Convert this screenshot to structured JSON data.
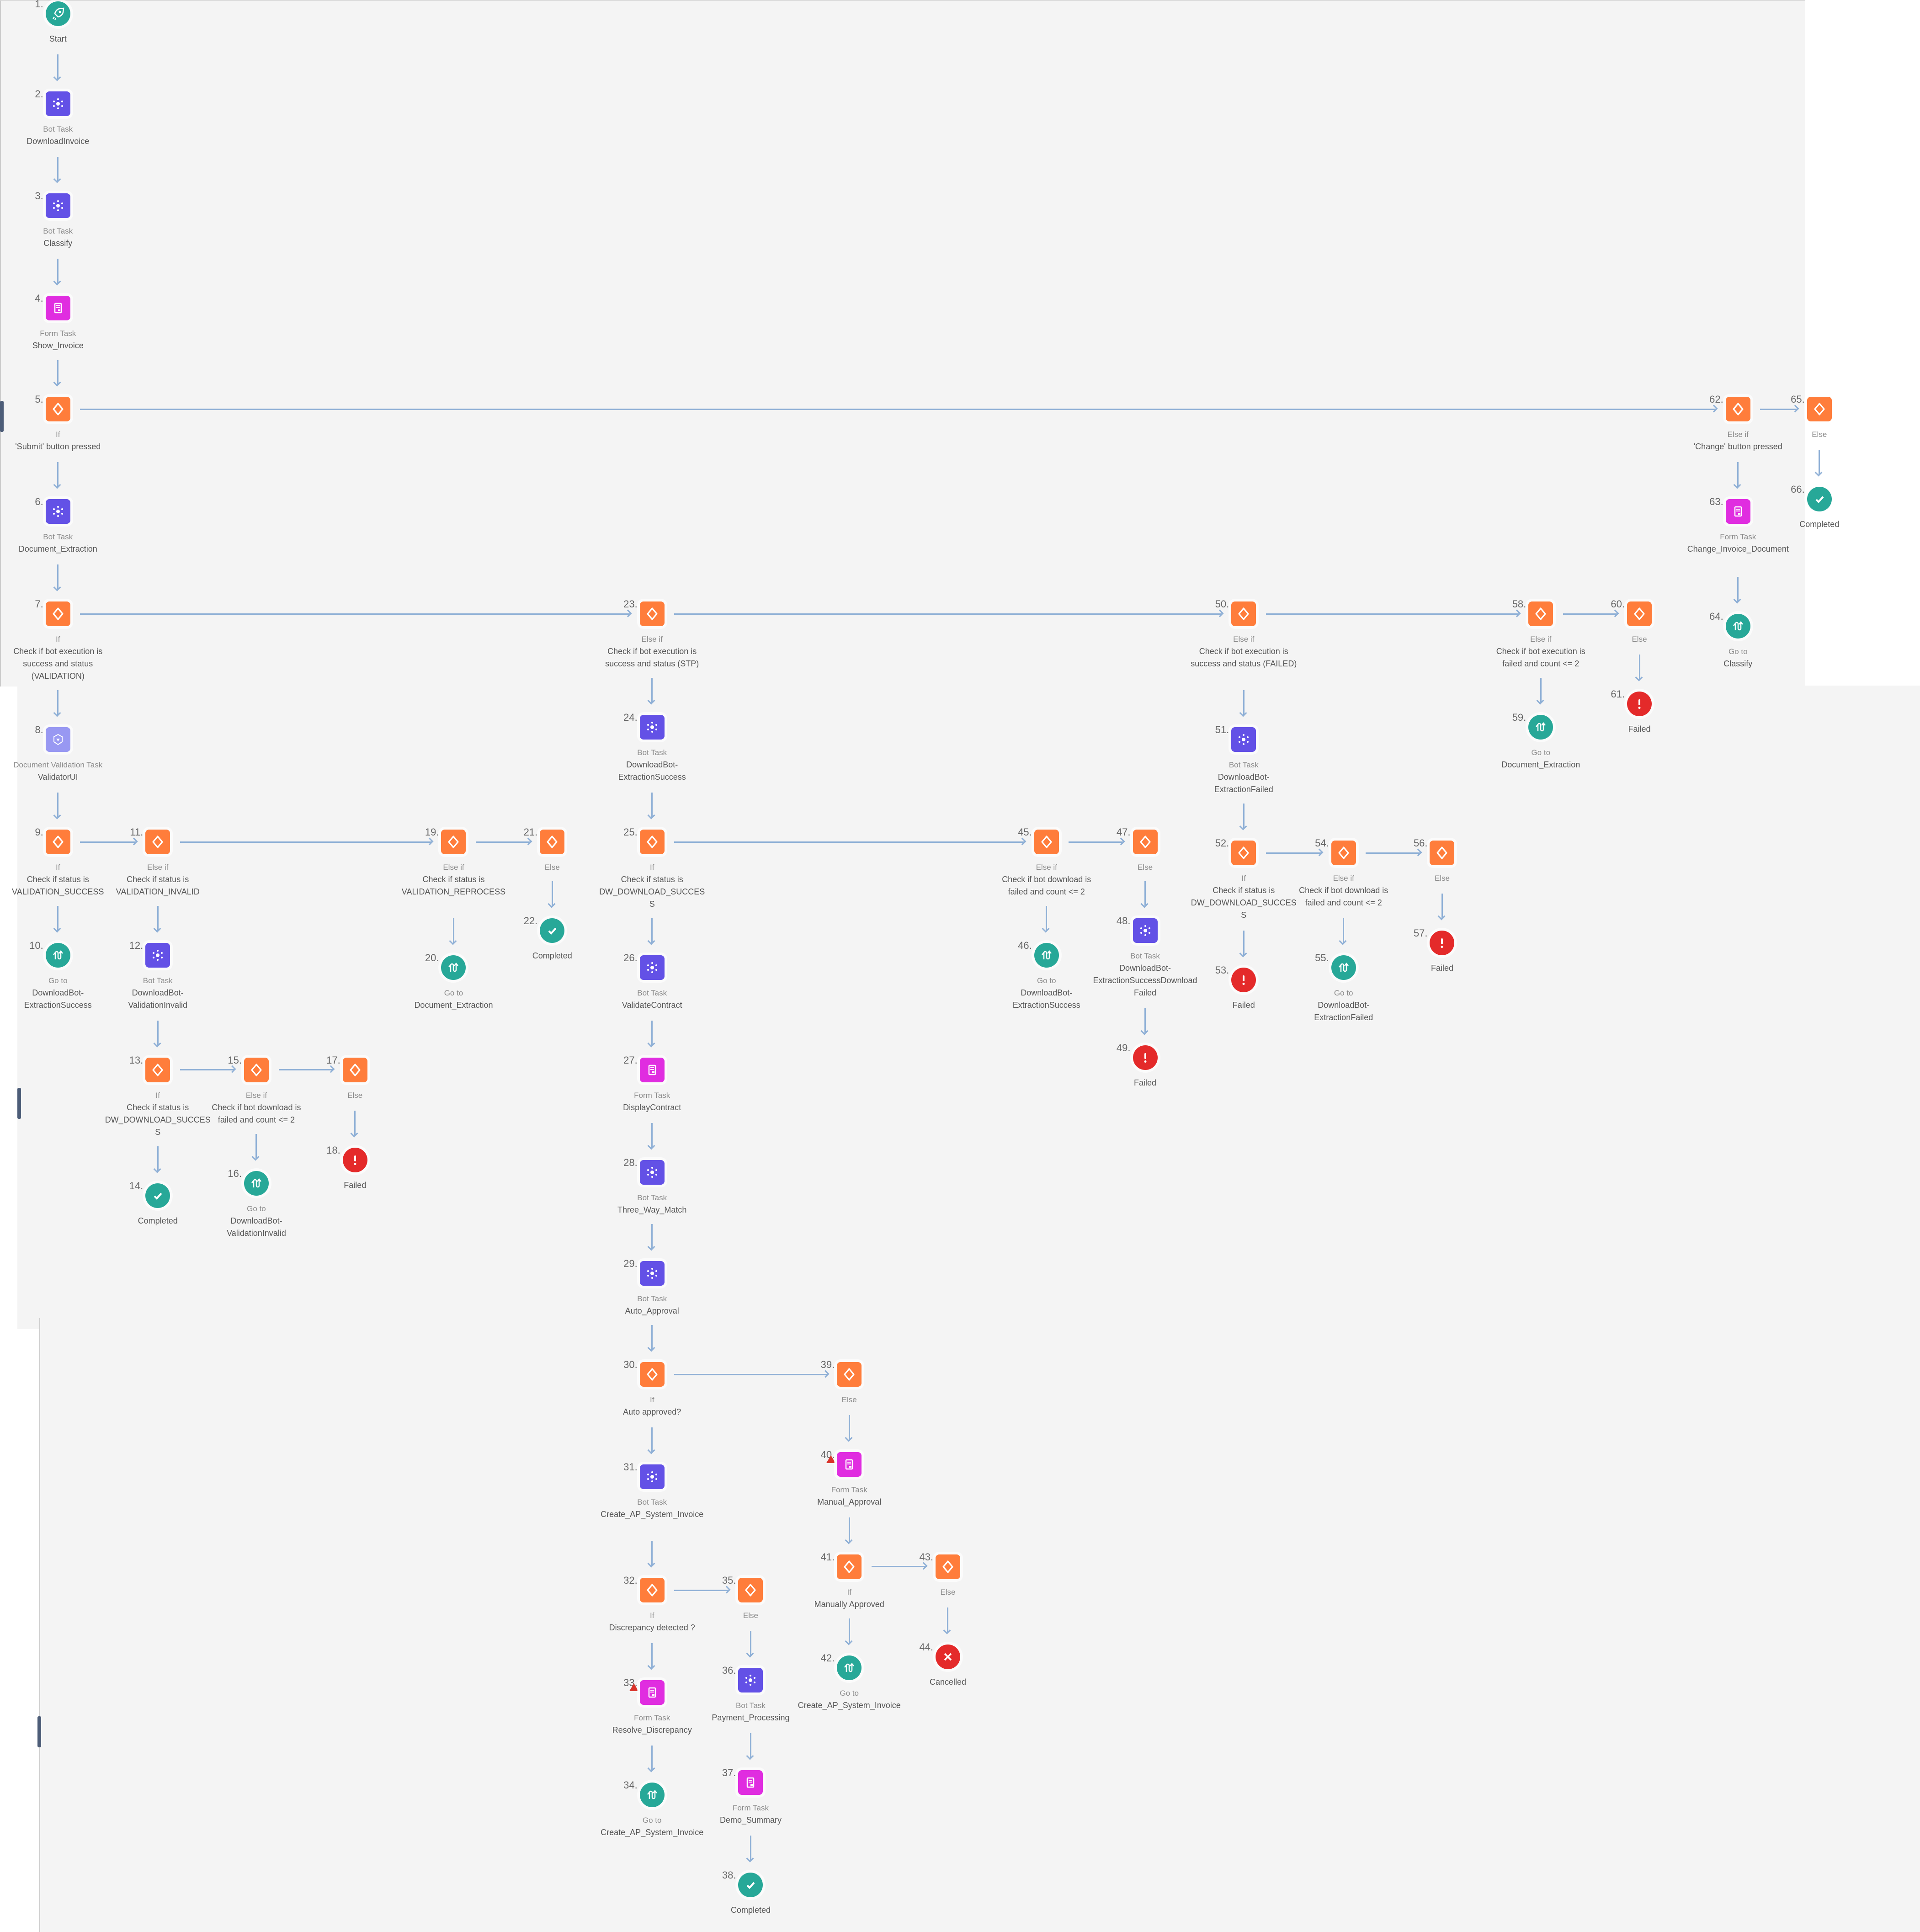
{
  "colors": {
    "start": "#27a898",
    "bot": "#6351e6",
    "form": "#e02de0",
    "if": "#ff7d3b",
    "validation": "#9898f2",
    "failed": "#e42a2a",
    "completed": "#27a898",
    "goto": "#27a898",
    "cancelled": "#e42a2a",
    "edge": "#8fb0d6"
  },
  "nodes": [
    {
      "id": 1,
      "num": "1.",
      "type": "start",
      "kind": "",
      "name": "Start"
    },
    {
      "id": 2,
      "num": "2.",
      "type": "bot",
      "kind": "Bot Task",
      "name": "DownloadInvoice"
    },
    {
      "id": 3,
      "num": "3.",
      "type": "bot",
      "kind": "Bot Task",
      "name": "Classify"
    },
    {
      "id": 4,
      "num": "4.",
      "type": "form",
      "kind": "Form Task",
      "name": "Show_Invoice"
    },
    {
      "id": 5,
      "num": "5.",
      "type": "if",
      "kind": "If",
      "name": "'Submit' button pressed"
    },
    {
      "id": 6,
      "num": "6.",
      "type": "bot",
      "kind": "Bot Task",
      "name": "Document_Extraction"
    },
    {
      "id": 7,
      "num": "7.",
      "type": "if",
      "kind": "If",
      "name": "Check if bot execution is success and status (VALIDATION)"
    },
    {
      "id": 8,
      "num": "8.",
      "type": "validation",
      "kind": "Document Validation Task",
      "name": "ValidatorUI"
    },
    {
      "id": 9,
      "num": "9.",
      "type": "if",
      "kind": "If",
      "name": "Check if status is VALIDATION_SUCCESS"
    },
    {
      "id": 10,
      "num": "10.",
      "type": "goto",
      "kind": "Go to",
      "name": "DownloadBot-ExtractionSuccess"
    },
    {
      "id": 11,
      "num": "11.",
      "type": "if",
      "kind": "Else if",
      "name": "Check if status is VALIDATION_INVALID"
    },
    {
      "id": 12,
      "num": "12.",
      "type": "bot",
      "kind": "Bot Task",
      "name": "DownloadBot-ValidationInvalid"
    },
    {
      "id": 13,
      "num": "13.",
      "type": "if",
      "kind": "If",
      "name": "Check if status is DW_DOWNLOAD_SUCCESS"
    },
    {
      "id": 14,
      "num": "14.",
      "type": "completed",
      "kind": "",
      "name": "Completed"
    },
    {
      "id": 15,
      "num": "15.",
      "type": "if",
      "kind": "Else if",
      "name": "Check if bot download is failed and count <= 2"
    },
    {
      "id": 16,
      "num": "16.",
      "type": "goto",
      "kind": "Go to",
      "name": "DownloadBot-ValidationInvalid"
    },
    {
      "id": 17,
      "num": "17.",
      "type": "if",
      "kind": "Else",
      "name": ""
    },
    {
      "id": 18,
      "num": "18.",
      "type": "failed",
      "kind": "",
      "name": "Failed"
    },
    {
      "id": 19,
      "num": "19.",
      "type": "if",
      "kind": "Else if",
      "name": "Check if status is VALIDATION_REPROCESS"
    },
    {
      "id": 20,
      "num": "20.",
      "type": "goto",
      "kind": "Go to",
      "name": "Document_Extraction"
    },
    {
      "id": 21,
      "num": "21.",
      "type": "if",
      "kind": "Else",
      "name": ""
    },
    {
      "id": 22,
      "num": "22.",
      "type": "completed",
      "kind": "",
      "name": "Completed"
    },
    {
      "id": 23,
      "num": "23.",
      "type": "if",
      "kind": "Else if",
      "name": "Check if bot execution is success and status (STP)"
    },
    {
      "id": 24,
      "num": "24.",
      "type": "bot",
      "kind": "Bot Task",
      "name": "DownloadBot-ExtractionSuccess"
    },
    {
      "id": 25,
      "num": "25.",
      "type": "if",
      "kind": "If",
      "name": "Check if status is DW_DOWNLOAD_SUCCESS"
    },
    {
      "id": 26,
      "num": "26.",
      "type": "bot",
      "kind": "Bot Task",
      "name": "ValidateContract"
    },
    {
      "id": 27,
      "num": "27.",
      "type": "form",
      "kind": "Form Task",
      "name": "DisplayContract"
    },
    {
      "id": 28,
      "num": "28.",
      "type": "bot",
      "kind": "Bot Task",
      "name": "Three_Way_Match"
    },
    {
      "id": 29,
      "num": "29.",
      "type": "bot",
      "kind": "Bot Task",
      "name": "Auto_Approval"
    },
    {
      "id": 30,
      "num": "30.",
      "type": "if",
      "kind": "If",
      "name": "Auto approved?"
    },
    {
      "id": 31,
      "num": "31.",
      "type": "bot",
      "kind": "Bot Task",
      "name": "Create_AP_System_Invoice"
    },
    {
      "id": 32,
      "num": "32.",
      "type": "if",
      "kind": "If",
      "name": "Discrepancy detected ?"
    },
    {
      "id": 33,
      "num": "33.",
      "type": "form",
      "kind": "Form Task",
      "name": "Resolve_Discrepancy",
      "warning": true
    },
    {
      "id": 34,
      "num": "34.",
      "type": "goto",
      "kind": "Go to",
      "name": "Create_AP_System_Invoice"
    },
    {
      "id": 35,
      "num": "35.",
      "type": "if",
      "kind": "Else",
      "name": ""
    },
    {
      "id": 36,
      "num": "36.",
      "type": "bot",
      "kind": "Bot Task",
      "name": "Payment_Processing"
    },
    {
      "id": 37,
      "num": "37.",
      "type": "form",
      "kind": "Form Task",
      "name": "Demo_Summary"
    },
    {
      "id": 38,
      "num": "38.",
      "type": "completed",
      "kind": "",
      "name": "Completed"
    },
    {
      "id": 39,
      "num": "39.",
      "type": "if",
      "kind": "Else",
      "name": ""
    },
    {
      "id": 40,
      "num": "40.",
      "type": "form",
      "kind": "Form Task",
      "name": "Manual_Approval",
      "warning": true
    },
    {
      "id": 41,
      "num": "41.",
      "type": "if",
      "kind": "If",
      "name": "Manually Approved"
    },
    {
      "id": 42,
      "num": "42.",
      "type": "goto",
      "kind": "Go to",
      "name": "Create_AP_System_Invoice"
    },
    {
      "id": 43,
      "num": "43.",
      "type": "if",
      "kind": "Else",
      "name": ""
    },
    {
      "id": 44,
      "num": "44.",
      "type": "cancelled",
      "kind": "",
      "name": "Cancelled"
    },
    {
      "id": 45,
      "num": "45.",
      "type": "if",
      "kind": "Else if",
      "name": "Check if bot download is failed and count <= 2"
    },
    {
      "id": 46,
      "num": "46.",
      "type": "goto",
      "kind": "Go to",
      "name": "DownloadBot-ExtractionSuccess"
    },
    {
      "id": 47,
      "num": "47.",
      "type": "if",
      "kind": "Else",
      "name": ""
    },
    {
      "id": 48,
      "num": "48.",
      "type": "bot",
      "kind": "Bot Task",
      "name": "DownloadBot-ExtractionSuccessDownloadFailed"
    },
    {
      "id": 49,
      "num": "49.",
      "type": "failed",
      "kind": "",
      "name": "Failed"
    },
    {
      "id": 50,
      "num": "50.",
      "type": "if",
      "kind": "Else if",
      "name": "Check if bot execution is success and status (FAILED)"
    },
    {
      "id": 51,
      "num": "51.",
      "type": "bot",
      "kind": "Bot Task",
      "name": "DownloadBot-ExtractionFailed"
    },
    {
      "id": 52,
      "num": "52.",
      "type": "if",
      "kind": "If",
      "name": "Check if status is DW_DOWNLOAD_SUCCESS"
    },
    {
      "id": 53,
      "num": "53.",
      "type": "failed",
      "kind": "",
      "name": "Failed"
    },
    {
      "id": 54,
      "num": "54.",
      "type": "if",
      "kind": "Else if",
      "name": "Check if bot download is failed and count <= 2"
    },
    {
      "id": 55,
      "num": "55.",
      "type": "goto",
      "kind": "Go to",
      "name": "DownloadBot-ExtractionFailed"
    },
    {
      "id": 56,
      "num": "56.",
      "type": "if",
      "kind": "Else",
      "name": ""
    },
    {
      "id": 57,
      "num": "57.",
      "type": "failed",
      "kind": "",
      "name": "Failed"
    },
    {
      "id": 58,
      "num": "58.",
      "type": "if",
      "kind": "Else if",
      "name": "Check if bot execution is failed and count <= 2"
    },
    {
      "id": 59,
      "num": "59.",
      "type": "goto",
      "kind": "Go to",
      "name": "Document_Extraction"
    },
    {
      "id": 60,
      "num": "60.",
      "type": "if",
      "kind": "Else",
      "name": ""
    },
    {
      "id": 61,
      "num": "61.",
      "type": "failed",
      "kind": "",
      "name": "Failed"
    },
    {
      "id": 62,
      "num": "62.",
      "type": "if",
      "kind": "Else if",
      "name": "'Change' button pressed"
    },
    {
      "id": 63,
      "num": "63.",
      "type": "form",
      "kind": "Form Task",
      "name": "Change_Invoice_Document"
    },
    {
      "id": 64,
      "num": "64.",
      "type": "goto",
      "kind": "Go to",
      "name": "Classify"
    },
    {
      "id": 65,
      "num": "65.",
      "type": "if",
      "kind": "Else",
      "name": ""
    },
    {
      "id": 66,
      "num": "66.",
      "type": "completed",
      "kind": "",
      "name": "Completed"
    }
  ],
  "edges_down": [
    [
      1,
      2
    ],
    [
      2,
      3
    ],
    [
      3,
      4
    ],
    [
      4,
      5
    ],
    [
      5,
      6
    ],
    [
      6,
      7
    ],
    [
      7,
      8
    ],
    [
      8,
      9
    ],
    [
      9,
      10
    ],
    [
      11,
      12
    ],
    [
      12,
      13
    ],
    [
      13,
      14
    ],
    [
      15,
      16
    ],
    [
      17,
      18
    ],
    [
      19,
      20
    ],
    [
      21,
      22
    ],
    [
      23,
      24
    ],
    [
      24,
      25
    ],
    [
      25,
      26
    ],
    [
      26,
      27
    ],
    [
      27,
      28
    ],
    [
      28,
      29
    ],
    [
      29,
      30
    ],
    [
      30,
      31
    ],
    [
      31,
      32
    ],
    [
      32,
      33
    ],
    [
      33,
      34
    ],
    [
      35,
      36
    ],
    [
      36,
      37
    ],
    [
      37,
      38
    ],
    [
      39,
      40
    ],
    [
      40,
      41
    ],
    [
      41,
      42
    ],
    [
      43,
      44
    ],
    [
      45,
      46
    ],
    [
      47,
      48
    ],
    [
      48,
      49
    ],
    [
      50,
      51
    ],
    [
      51,
      52
    ],
    [
      52,
      53
    ],
    [
      54,
      55
    ],
    [
      56,
      57
    ],
    [
      58,
      59
    ],
    [
      60,
      61
    ],
    [
      62,
      63
    ],
    [
      63,
      64
    ],
    [
      65,
      66
    ]
  ],
  "edges_branch": [
    [
      5,
      62
    ],
    [
      62,
      65
    ],
    [
      7,
      23
    ],
    [
      23,
      50
    ],
    [
      50,
      58
    ],
    [
      58,
      60
    ],
    [
      9,
      11
    ],
    [
      11,
      19
    ],
    [
      19,
      21
    ],
    [
      13,
      15
    ],
    [
      15,
      17
    ],
    [
      25,
      45
    ],
    [
      45,
      47
    ],
    [
      52,
      54
    ],
    [
      54,
      56
    ],
    [
      30,
      39
    ],
    [
      32,
      35
    ],
    [
      41,
      43
    ]
  ]
}
